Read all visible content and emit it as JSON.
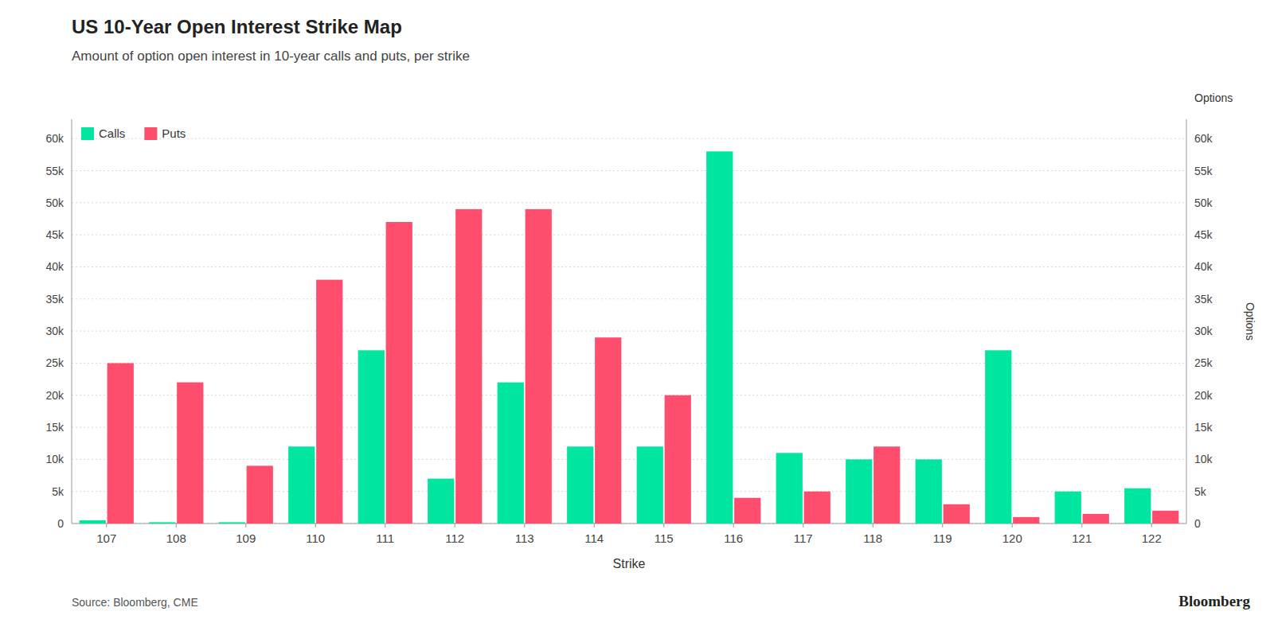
{
  "chart_data": {
    "type": "bar",
    "title": "US 10-Year Open Interest Strike Map",
    "subtitle": "Amount of option open interest in 10-year calls and puts, per strike",
    "x_label": "Strike",
    "y2_label": "Options",
    "annotations": [
      "Source:  Bloomberg, CME",
      "Bloomberg"
    ],
    "categories": [
      "107",
      "108",
      "109",
      "110",
      "111",
      "112",
      "113",
      "114",
      "115",
      "116",
      "117",
      "118",
      "119",
      "120",
      "121",
      "122"
    ],
    "series": [
      {
        "name": "Calls",
        "color": "#00e5a0",
        "values": [
          500,
          200,
          200,
          12000,
          27000,
          7000,
          22000,
          12000,
          12000,
          58000,
          11000,
          10000,
          10000,
          27000,
          5000,
          5500
        ]
      },
      {
        "name": "Puts",
        "color": "#ff4d6d",
        "values": [
          25000,
          22000,
          9000,
          38000,
          47000,
          49000,
          49000,
          29000,
          20000,
          4000,
          5000,
          12000,
          3000,
          1000,
          1500,
          2000
        ]
      }
    ],
    "ylim": [
      0,
      63000
    ],
    "yticks": [
      0,
      {
        "value": 5000,
        "label": "5k"
      },
      {
        "value": 10000,
        "label": "10k"
      },
      {
        "value": 15000,
        "label": "15k"
      },
      {
        "value": 20000,
        "label": "20k"
      },
      {
        "value": 25000,
        "label": "25k"
      },
      {
        "value": 30000,
        "label": "30k"
      },
      {
        "value": 35000,
        "label": "35k"
      },
      {
        "value": 40000,
        "label": "40k"
      },
      {
        "value": 45000,
        "label": "45k"
      },
      {
        "value": 50000,
        "label": "50k"
      },
      {
        "value": 55000,
        "label": "55k"
      },
      {
        "value": 60000,
        "label": "60k"
      }
    ],
    "y2lim": [
      0,
      63000
    ],
    "y2ticks": [
      0,
      {
        "value": 5000,
        "label": "5k"
      },
      {
        "value": 10000,
        "label": "10k"
      },
      {
        "value": 15000,
        "label": "15k"
      },
      {
        "value": 20000,
        "label": "20k"
      },
      {
        "value": 25000,
        "label": "25k"
      },
      {
        "value": 30000,
        "label": "30k"
      },
      {
        "value": 35000,
        "label": "35k"
      },
      {
        "value": 40000,
        "label": "40k"
      },
      {
        "value": 45000,
        "label": "45k"
      },
      {
        "value": 50000,
        "label": "50k"
      },
      {
        "value": 55000,
        "label": "55k"
      },
      {
        "value": 60000,
        "label": "60k"
      }
    ],
    "grid": true,
    "legend": "top-left"
  }
}
